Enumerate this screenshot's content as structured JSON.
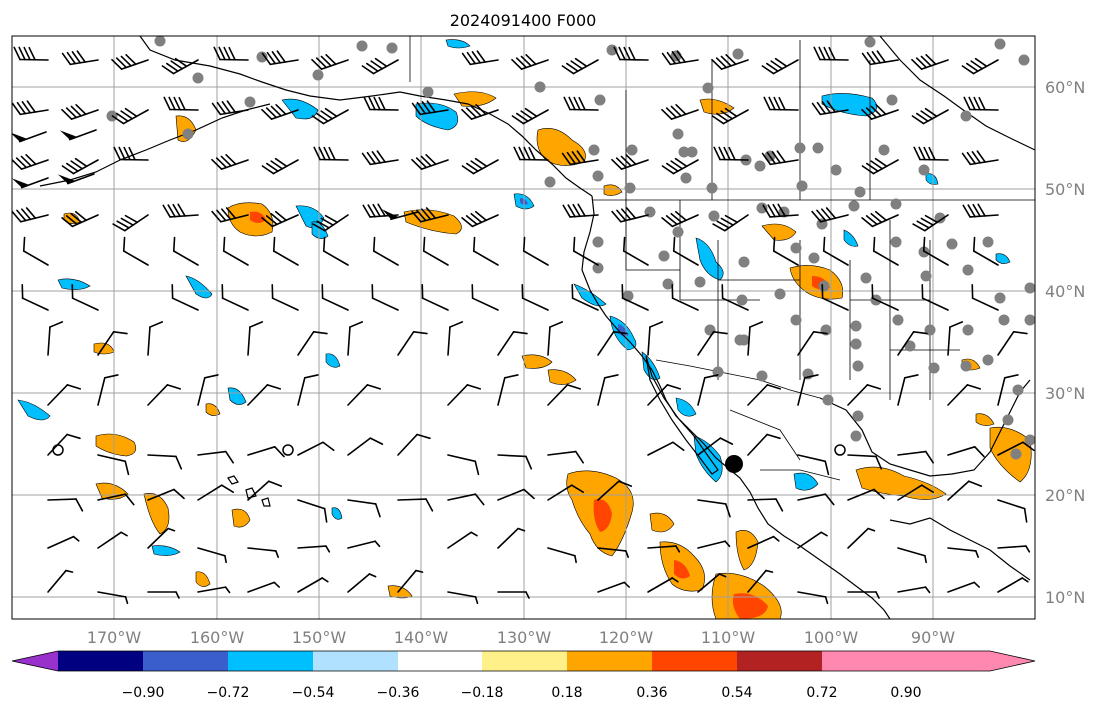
{
  "title": "2024091400 F000",
  "map": {
    "lat_labels": [
      "60°N",
      "50°N",
      "40°N",
      "30°N",
      "20°N",
      "10°N"
    ],
    "lon_labels": [
      "170°W",
      "160°W",
      "150°W",
      "140°W",
      "130°W",
      "120°W",
      "110°W",
      "100°W",
      "90°W"
    ],
    "extent": {
      "lon_min": -180,
      "lon_max": -80,
      "lat_min": 8,
      "lat_max": 65
    },
    "storm_center_marker": {
      "lon": -110.0,
      "lat": 23.0
    },
    "station_marker_color": "#808080",
    "barb_color": "#000000",
    "coastline_color": "#000000",
    "grid_color": "#a0a0a0"
  },
  "colorbar": {
    "ticks": [
      "−0.90",
      "−0.72",
      "−0.54",
      "−0.36",
      "−0.18",
      "0.18",
      "0.36",
      "0.54",
      "0.72",
      "0.90"
    ],
    "colors": [
      "#9932cc",
      "#000080",
      "#3a5fcd",
      "#00bfff",
      "#b0e2ff",
      "#ffffff",
      "#fff08a",
      "#ffa500",
      "#ff4500",
      "#b22222",
      "#ff88b0"
    ]
  }
}
